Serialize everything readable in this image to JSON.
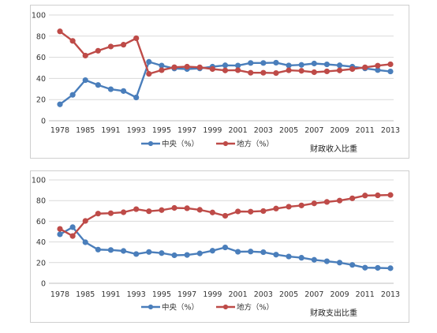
{
  "colors": {
    "central": "#4a7ebb",
    "local": "#be4b48",
    "grid": "#d9d9d9",
    "frame": "#cfcfcf"
  },
  "chart_data": [
    {
      "type": "line",
      "title": "财政收入比重",
      "x_tick_labels": [
        "1978",
        "1985",
        "1991",
        "1993",
        "1995",
        "1997",
        "1999",
        "2001",
        "2003",
        "2005",
        "2007",
        "2009",
        "2011",
        "2013"
      ],
      "y_ticks": [
        0,
        20,
        40,
        60,
        80,
        100
      ],
      "ylim": [
        0,
        100
      ],
      "grid": true,
      "legend_position": "bottom",
      "series": [
        {
          "name": "中央（%）",
          "values": [
            15.5,
            24.5,
            38.4,
            33.8,
            29.8,
            28.1,
            22.0,
            55.7,
            52.2,
            49.4,
            48.9,
            49.5,
            51.1,
            52.4,
            52.2,
            54.6,
            54.6,
            54.9,
            52.3,
            52.8,
            54.1,
            53.3,
            52.4,
            51.1,
            49.5,
            47.9,
            46.6
          ]
        },
        {
          "name": "地方（%）",
          "values": [
            84.5,
            75.5,
            61.6,
            66.2,
            70.2,
            71.9,
            78.0,
            44.3,
            47.8,
            50.6,
            51.1,
            50.5,
            48.9,
            47.6,
            47.8,
            45.4,
            45.4,
            45.1,
            47.7,
            47.2,
            45.9,
            46.7,
            47.6,
            48.9,
            50.5,
            52.1,
            53.4
          ]
        }
      ]
    },
    {
      "type": "line",
      "title": "财政支出比重",
      "x_tick_labels": [
        "1978",
        "1985",
        "1991",
        "1993",
        "1995",
        "1997",
        "1999",
        "2001",
        "2003",
        "2005",
        "2007",
        "2009",
        "2011",
        "2013"
      ],
      "y_ticks": [
        0,
        20,
        40,
        60,
        80,
        100
      ],
      "ylim": [
        0,
        100
      ],
      "grid": true,
      "legend_position": "bottom",
      "series": [
        {
          "name": "中央（%）",
          "values": [
            47.4,
            54.3,
            39.7,
            32.6,
            32.2,
            31.3,
            28.3,
            30.3,
            29.2,
            27.1,
            27.4,
            28.9,
            31.5,
            34.7,
            30.5,
            30.7,
            30.1,
            27.7,
            25.9,
            24.7,
            22.7,
            21.3,
            20.0,
            17.8,
            15.1,
            14.9,
            14.6
          ]
        },
        {
          "name": "地方（%）",
          "values": [
            52.6,
            45.7,
            60.3,
            67.4,
            67.8,
            68.7,
            71.7,
            69.7,
            70.8,
            72.9,
            72.6,
            71.1,
            68.5,
            65.3,
            69.5,
            69.3,
            69.9,
            72.3,
            74.1,
            75.3,
            77.3,
            78.7,
            80.0,
            82.2,
            84.9,
            85.1,
            85.4
          ]
        }
      ]
    }
  ]
}
